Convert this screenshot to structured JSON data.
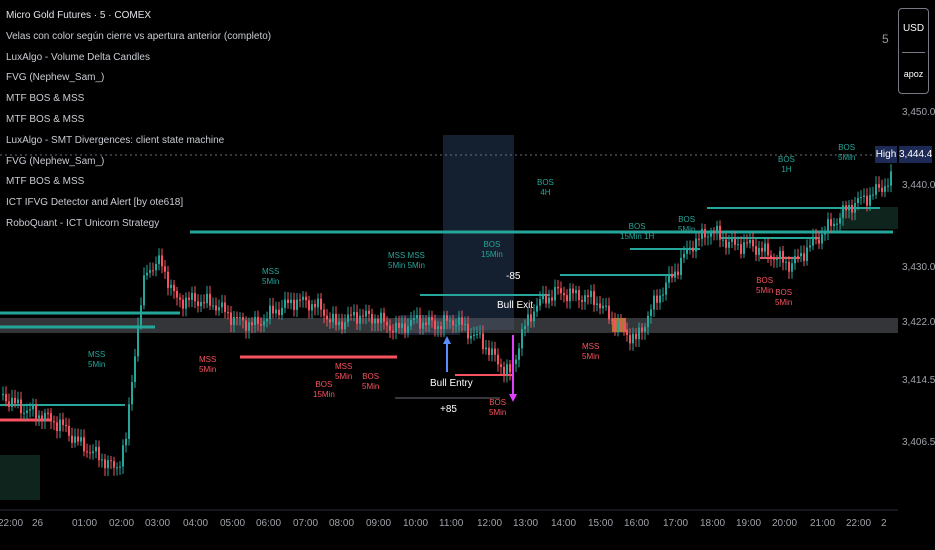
{
  "overlay": {
    "title": "Micro Gold Futures · 5 · COMEX",
    "indicators": [
      "Velas con color según cierre vs apertura anterior (completo)",
      "LuxAlgo - Volume Delta Candles",
      "FVG (Nephew_Sam_)",
      "MTF BOS & MSS",
      "MTF BOS & MSS",
      "LuxAlgo - SMT Divergences: client state machine",
      "FVG (Nephew_Sam_)",
      "MTF BOS & MSS",
      "ICT IFVG Detector and Alert [by ote618]",
      "RoboQuant - ICT Unicorn Strategy"
    ]
  },
  "toolbar": {
    "interval_badge": "5",
    "currency": "USD",
    "unit": "apoz"
  },
  "price_axis": {
    "labels": [
      "3,450.0",
      "3,440.0",
      "3,430.0",
      "3,422.0",
      "3,414.5",
      "3,406.5"
    ],
    "high_tag": "High",
    "high_price": "3,444.4"
  },
  "time_axis": {
    "labels": [
      "22:00",
      "26",
      "01:00",
      "02:00",
      "03:00",
      "04:00",
      "05:00",
      "06:00",
      "07:00",
      "08:00",
      "09:00",
      "10:00",
      "11:00",
      "12:00",
      "13:00",
      "14:00",
      "15:00",
      "16:00",
      "17:00",
      "18:00",
      "19:00",
      "20:00",
      "21:00",
      "22:00",
      "2"
    ]
  },
  "signals": {
    "bull_exit": "Bull Exit",
    "bull_entry": "Bull Entry",
    "exit_value": "-85",
    "entry_value": "+85"
  },
  "annotations": [
    {
      "text": "BOS",
      "sub": "4H",
      "color": "#26a69a"
    },
    {
      "text": "BOS",
      "sub": "15Min",
      "color": "#26a69a"
    },
    {
      "text": "MSS MSS",
      "sub": "5Min 5Min",
      "color": "#26a69a"
    },
    {
      "text": "MSS",
      "sub": "5Min",
      "color": "#26a69a"
    },
    {
      "text": "BOS",
      "sub": "5Min",
      "color": "#26a69a"
    },
    {
      "text": "BOS",
      "sub": "1H",
      "color": "#26a69a"
    },
    {
      "text": "BOS",
      "sub": "5Min",
      "color": "#26a69a"
    },
    {
      "text": "BOS",
      "sub": "15Min 1H",
      "color": "#26a69a"
    },
    {
      "text": "MSS",
      "sub": "5Min",
      "color": "#f7525f"
    },
    {
      "text": "BOS",
      "sub": "15Min",
      "color": "#f7525f"
    },
    {
      "text": "BOS",
      "sub": "5Min",
      "color": "#f7525f"
    },
    {
      "text": "MSS",
      "sub": "5Min",
      "color": "#f7525f"
    },
    {
      "text": "BOS",
      "sub": "5Min",
      "color": "#f7525f"
    },
    {
      "text": "MSS",
      "sub": "5Min",
      "color": "#f7525f"
    },
    {
      "text": "BOS",
      "sub": "5Min",
      "color": "#f7525f"
    },
    {
      "text": "BOS",
      "sub": "5Min",
      "color": "#f7525f"
    },
    {
      "text": "MSS",
      "sub": "5Min",
      "color": "#26a69a"
    }
  ],
  "colors": {
    "up": "#26a69a",
    "down": "#f7525f",
    "highlight": "#1e2a56",
    "session_box": "#1b2a3f"
  }
}
